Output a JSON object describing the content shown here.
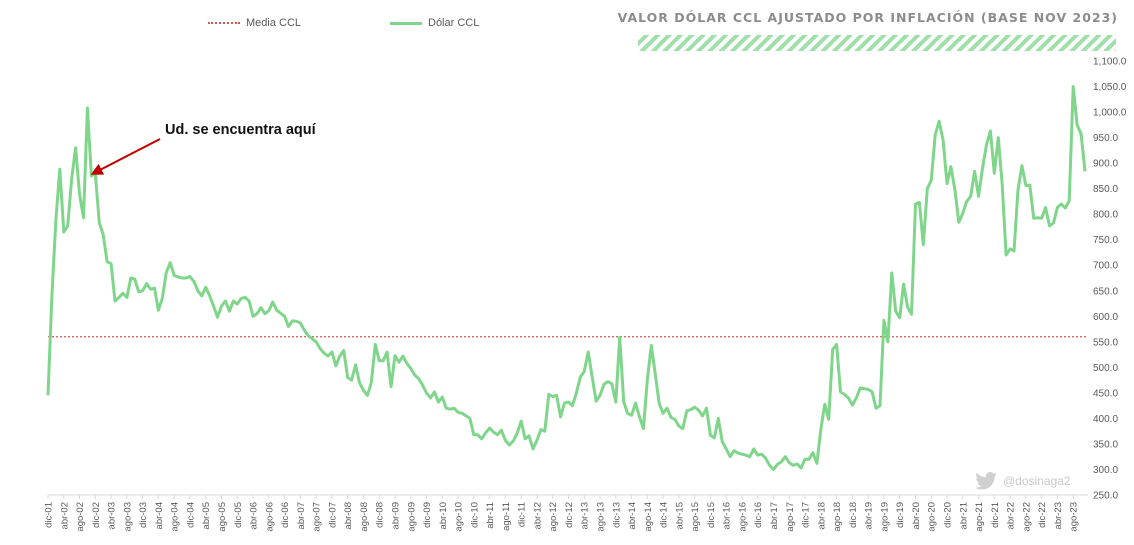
{
  "chart_data": {
    "type": "line",
    "title": "VALOR DÓLAR CCL AJUSTADO POR INFLACIÓN (BASE NOV 2023)",
    "legend_position": "top-left",
    "grid": false,
    "ylim": [
      250,
      1100
    ],
    "yticks": [
      "250.0",
      "300.0",
      "350.0",
      "400.0",
      "450.0",
      "500.0",
      "550.0",
      "600.0",
      "650.0",
      "700.0",
      "750.0",
      "800.0",
      "850.0",
      "900.0",
      "950.0",
      "1,000.0",
      "1,050.0",
      "1,100.0"
    ],
    "xtick_labels": [
      "dic-01",
      "abr-02",
      "ago-02",
      "dic-02",
      "abr-03",
      "ago-03",
      "dic-03",
      "abr-04",
      "ago-04",
      "dic-04",
      "abr-05",
      "ago-05",
      "dic-05",
      "abr-06",
      "ago-06",
      "dic-06",
      "abr-07",
      "ago-07",
      "dic-07",
      "abr-08",
      "ago-08",
      "dic-08",
      "abr-09",
      "ago-09",
      "dic-09",
      "abr-10",
      "ago-10",
      "dic-10",
      "abr-11",
      "ago-11",
      "dic-11",
      "abr-12",
      "ago-12",
      "dic-12",
      "abr-13",
      "ago-13",
      "dic-13",
      "abr-14",
      "ago-14",
      "dic-14",
      "abr-15",
      "ago-15",
      "dic-15",
      "abr-16",
      "ago-16",
      "dic-16",
      "abr-17",
      "ago-17",
      "dic-17",
      "abr-18",
      "ago-18",
      "dic-18",
      "abr-19",
      "ago-19",
      "dic-19",
      "abr-20",
      "ago-20",
      "dic-20",
      "abr-21",
      "ago-21",
      "dic-21",
      "abr-22",
      "ago-22",
      "dic-22",
      "abr-23",
      "ago-23"
    ],
    "series": [
      {
        "name": "Dólar CCL",
        "color": "#7fd68b",
        "style": "solid",
        "values": [
          445,
          640,
          790,
          888,
          765,
          777,
          870,
          930,
          840,
          793,
          1008,
          875,
          880,
          783,
          760,
          707,
          703,
          630,
          637,
          645,
          637,
          675,
          673,
          648,
          650,
          664,
          653,
          655,
          612,
          635,
          686,
          705,
          680,
          677,
          675,
          675,
          678,
          668,
          650,
          640,
          657,
          640,
          620,
          598,
          620,
          630,
          610,
          630,
          624,
          635,
          637,
          630,
          600,
          605,
          617,
          605,
          611,
          628,
          612,
          606,
          600,
          580,
          591,
          590,
          587,
          573,
          562,
          556,
          550,
          537,
          528,
          522,
          530,
          503,
          522,
          533,
          480,
          475,
          505,
          470,
          455,
          445,
          470,
          545,
          513,
          513,
          530,
          462,
          523,
          510,
          522,
          508,
          498,
          485,
          478,
          465,
          450,
          440,
          452,
          432,
          442,
          420,
          418,
          420,
          412,
          410,
          405,
          400,
          368,
          368,
          360,
          372,
          381,
          373,
          368,
          377,
          357,
          348,
          356,
          371,
          395,
          360,
          366,
          340,
          357,
          378,
          375,
          447,
          443,
          445,
          403,
          430,
          432,
          425,
          450,
          481,
          492,
          530,
          482,
          434,
          445,
          467,
          472,
          468,
          432,
          559,
          433,
          410,
          406,
          430,
          404,
          380,
          475,
          543,
          488,
          429,
          410,
          420,
          402,
          398,
          385,
          380,
          415,
          417,
          422,
          416,
          405,
          420,
          367,
          362,
          400,
          355,
          340,
          325,
          337,
          332,
          330,
          328,
          325,
          340,
          328,
          330,
          322,
          308,
          300,
          310,
          315,
          325,
          313,
          308,
          311,
          303,
          320,
          320,
          333,
          312,
          378,
          428,
          398,
          535,
          545,
          452,
          447,
          440,
          426,
          440,
          460,
          458,
          457,
          452,
          420,
          425,
          592,
          550,
          685,
          610,
          597,
          663,
          618,
          604,
          820,
          823,
          740,
          850,
          866,
          955,
          982,
          945,
          860,
          893,
          848,
          784,
          802,
          825,
          835,
          884,
          835,
          890,
          935,
          963,
          880,
          950,
          858,
          720,
          732,
          728,
          848,
          895,
          856,
          857,
          792,
          793,
          792,
          813,
          777,
          783,
          813,
          820,
          812,
          826,
          1050,
          975,
          957,
          884
        ]
      },
      {
        "name": "Media CCL",
        "color": "#d9534f",
        "style": "dotted",
        "values": [
          560
        ]
      }
    ],
    "annotation": {
      "text": "Ud. se encuentra aquí",
      "target_index": 11
    },
    "watermark": "@dosinaga2"
  }
}
